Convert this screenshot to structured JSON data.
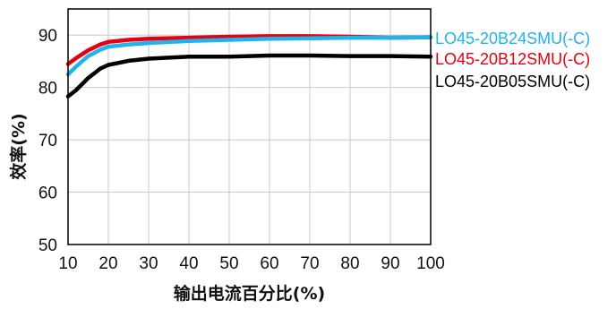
{
  "chart_data": {
    "type": "line",
    "xlabel": "输出电流百分比(%)",
    "ylabel": "效率(%)",
    "xlim": [
      10,
      100
    ],
    "ylim": [
      50,
      95
    ],
    "xticks": [
      10,
      20,
      30,
      40,
      50,
      60,
      70,
      80,
      90,
      100
    ],
    "yticks": [
      50,
      60,
      70,
      80,
      90
    ],
    "grid": true,
    "legend": "right",
    "series": [
      {
        "name": "LO45-20B24SMU(-C)",
        "color": "#1fb4ea",
        "x": [
          10,
          12,
          15,
          18,
          20,
          25,
          30,
          40,
          50,
          60,
          70,
          80,
          90,
          100
        ],
        "y": [
          82.5,
          84,
          86,
          87.2,
          87.8,
          88.2,
          88.5,
          88.9,
          89.1,
          89.3,
          89.4,
          89.5,
          89.5,
          89.6
        ]
      },
      {
        "name": "LO45-20B12SMU(-C)",
        "color": "#e60012",
        "x": [
          10,
          12,
          15,
          18,
          20,
          25,
          30,
          40,
          50,
          60,
          70,
          80,
          90,
          100
        ],
        "y": [
          84.5,
          85.6,
          87.1,
          88.2,
          88.7,
          89.1,
          89.3,
          89.5,
          89.7,
          89.8,
          89.8,
          89.7,
          89.5,
          89.6
        ]
      },
      {
        "name": "LO45-20B05SMU(-C)",
        "color": "#000000",
        "x": [
          10,
          12,
          15,
          18,
          20,
          25,
          30,
          40,
          50,
          60,
          70,
          80,
          90,
          100
        ],
        "y": [
          78.3,
          79.5,
          81.8,
          83.6,
          84.3,
          85.1,
          85.5,
          85.9,
          85.9,
          86.1,
          86.1,
          86.0,
          86.0,
          85.9
        ]
      }
    ]
  }
}
